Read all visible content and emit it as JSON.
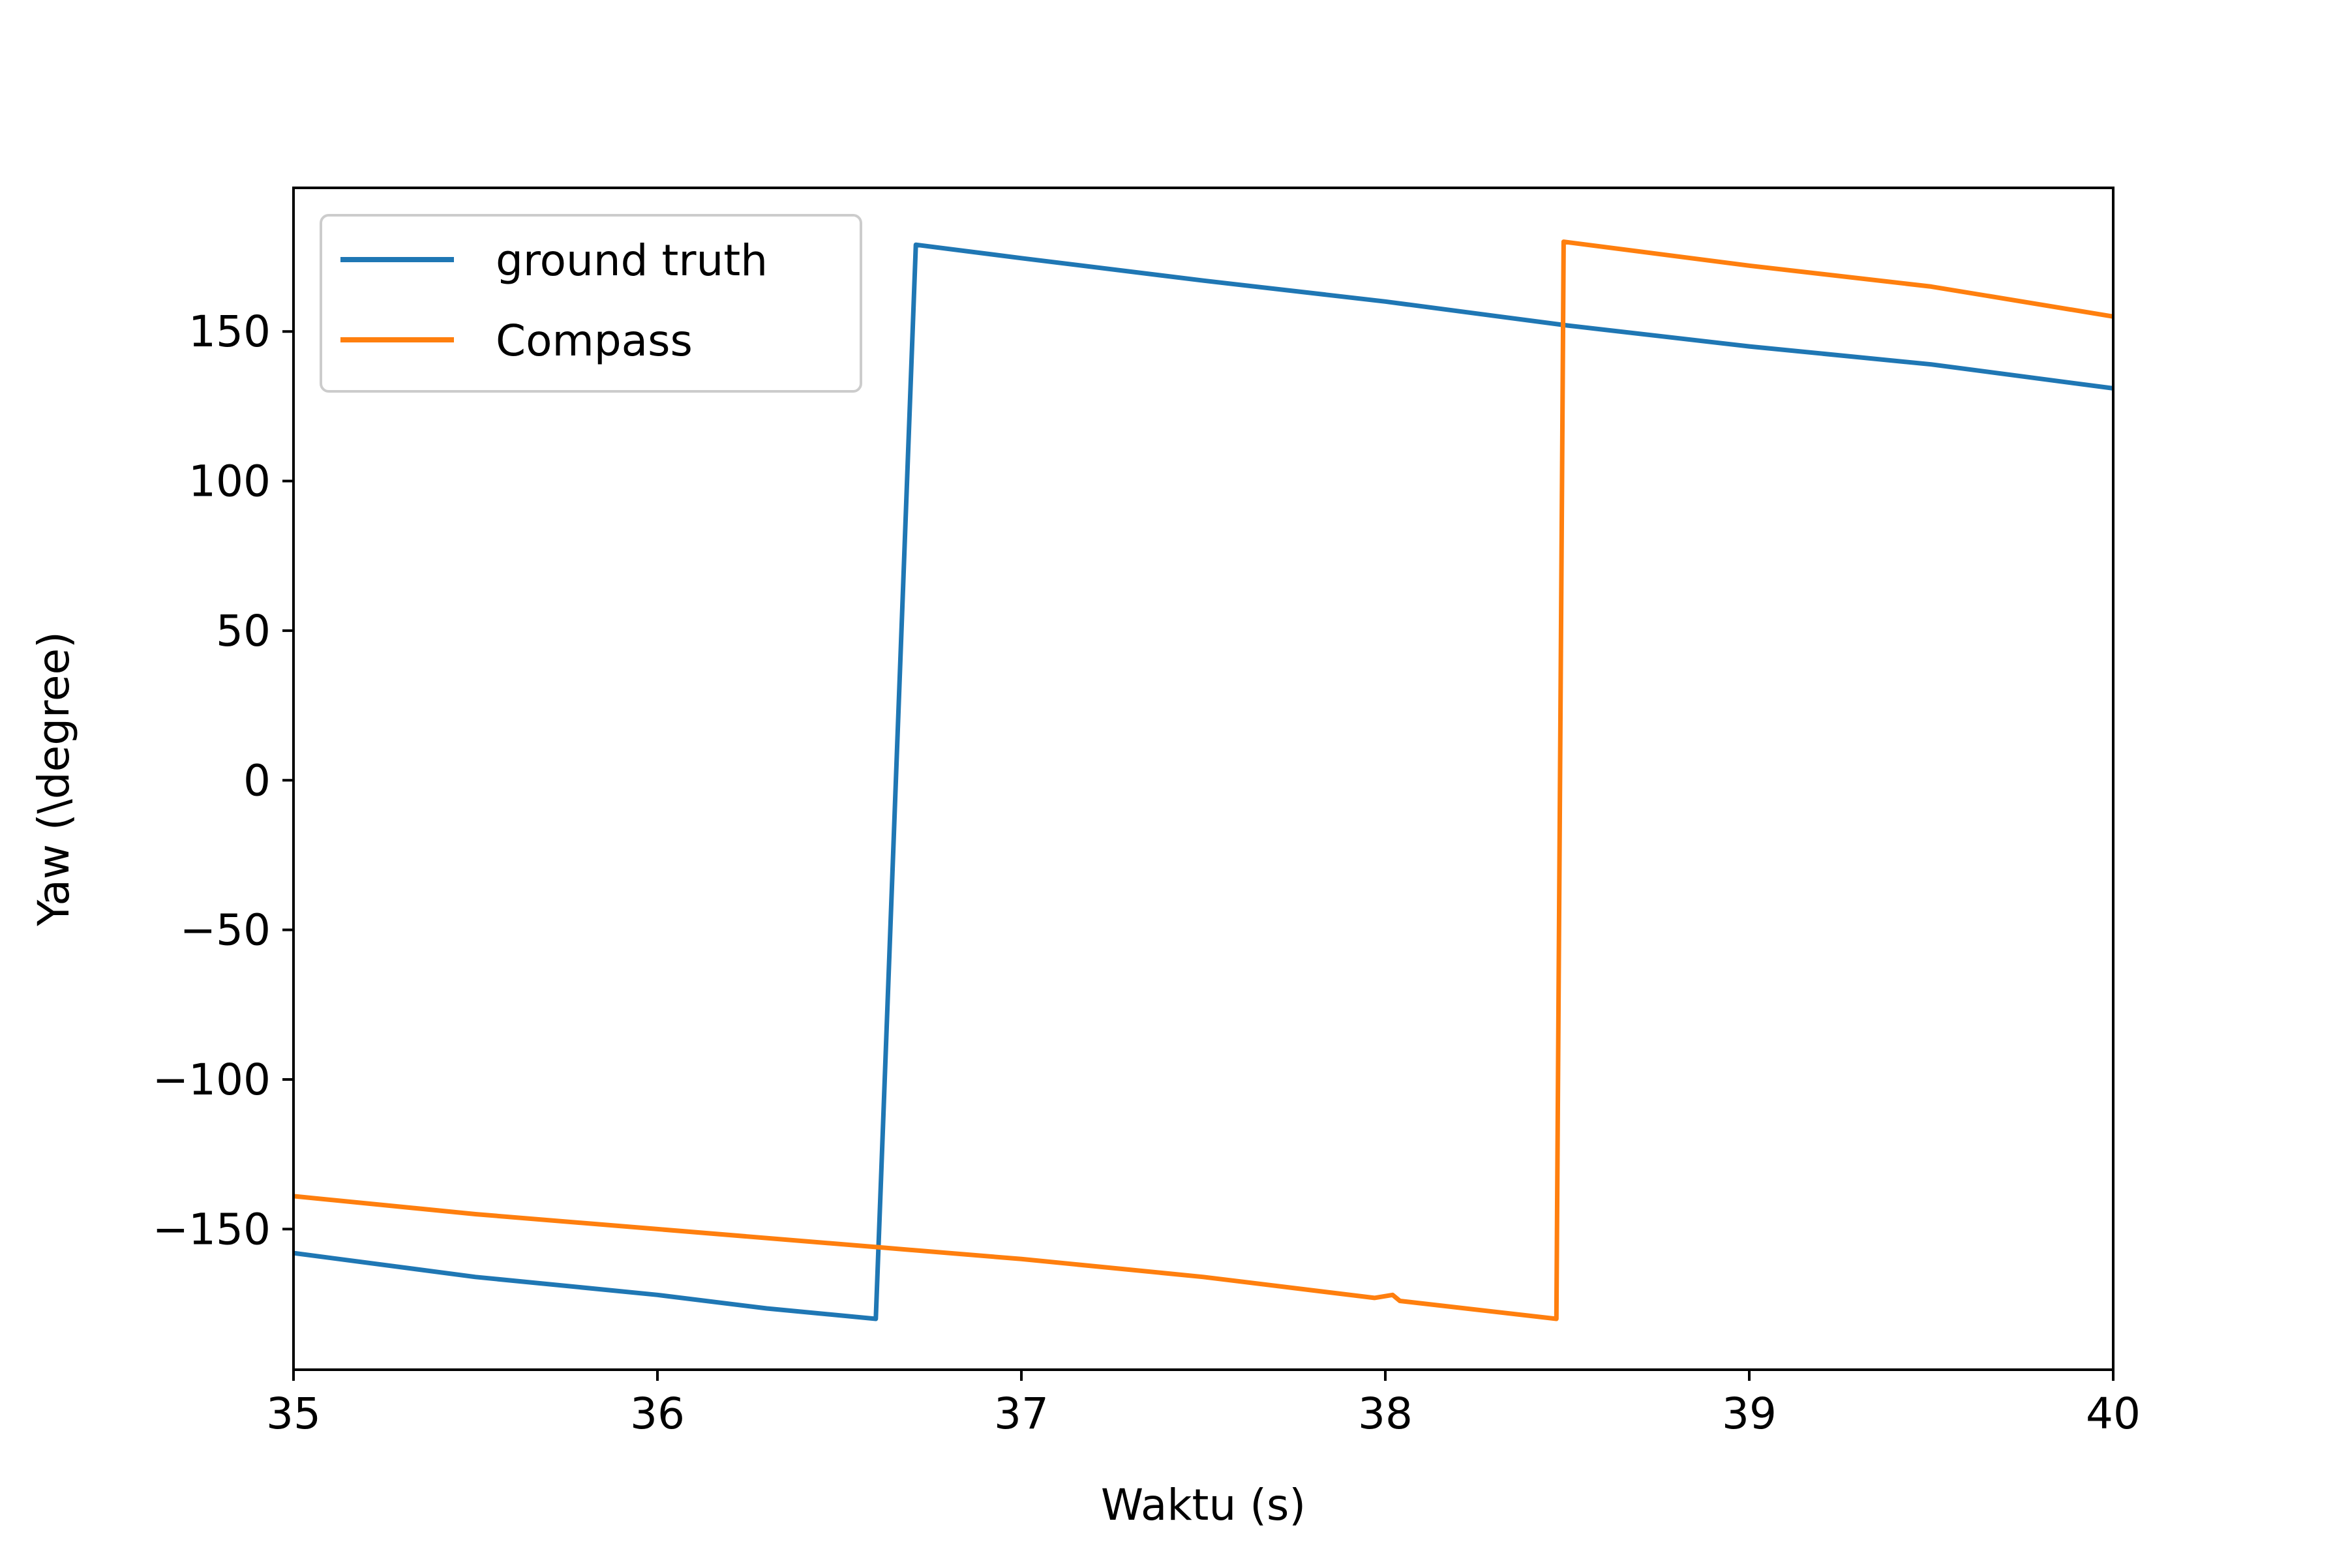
{
  "chart_data": {
    "type": "line",
    "title": "",
    "xlabel": "Waktu (s)",
    "ylabel": "Yaw (\\degree)",
    "xlim": [
      35,
      40
    ],
    "ylim": [
      -197,
      198
    ],
    "xticks": [
      35,
      36,
      37,
      38,
      39,
      40
    ],
    "xtick_labels": [
      "35",
      "36",
      "37",
      "38",
      "39",
      "40"
    ],
    "yticks": [
      -150,
      -100,
      -50,
      0,
      50,
      100,
      150
    ],
    "ytick_labels": [
      "−150",
      "−100",
      "−50",
      "0",
      "50",
      "100",
      "150"
    ],
    "grid": false,
    "legend_position": "top-left",
    "series": [
      {
        "name": "ground truth",
        "color": "#1f77b4",
        "points": [
          [
            35.0,
            -158
          ],
          [
            35.5,
            -166
          ],
          [
            36.0,
            -172
          ],
          [
            36.3,
            -176.5
          ],
          [
            36.6,
            -180
          ],
          [
            36.71,
            179
          ],
          [
            37.0,
            174.5
          ],
          [
            37.5,
            167
          ],
          [
            38.0,
            160
          ],
          [
            38.5,
            152
          ],
          [
            39.0,
            145
          ],
          [
            39.5,
            139
          ],
          [
            40.0,
            131
          ]
        ]
      },
      {
        "name": "Compass",
        "color": "#ff7f0e",
        "points": [
          [
            35.0,
            -139
          ],
          [
            35.5,
            -145
          ],
          [
            36.0,
            -150
          ],
          [
            36.6,
            -156
          ],
          [
            37.0,
            -160
          ],
          [
            37.5,
            -166
          ],
          [
            37.97,
            -173
          ],
          [
            38.02,
            -172
          ],
          [
            38.04,
            -174
          ],
          [
            38.47,
            -180
          ],
          [
            38.49,
            180
          ],
          [
            39.0,
            172
          ],
          [
            39.5,
            165
          ],
          [
            40.0,
            155
          ]
        ]
      }
    ]
  }
}
